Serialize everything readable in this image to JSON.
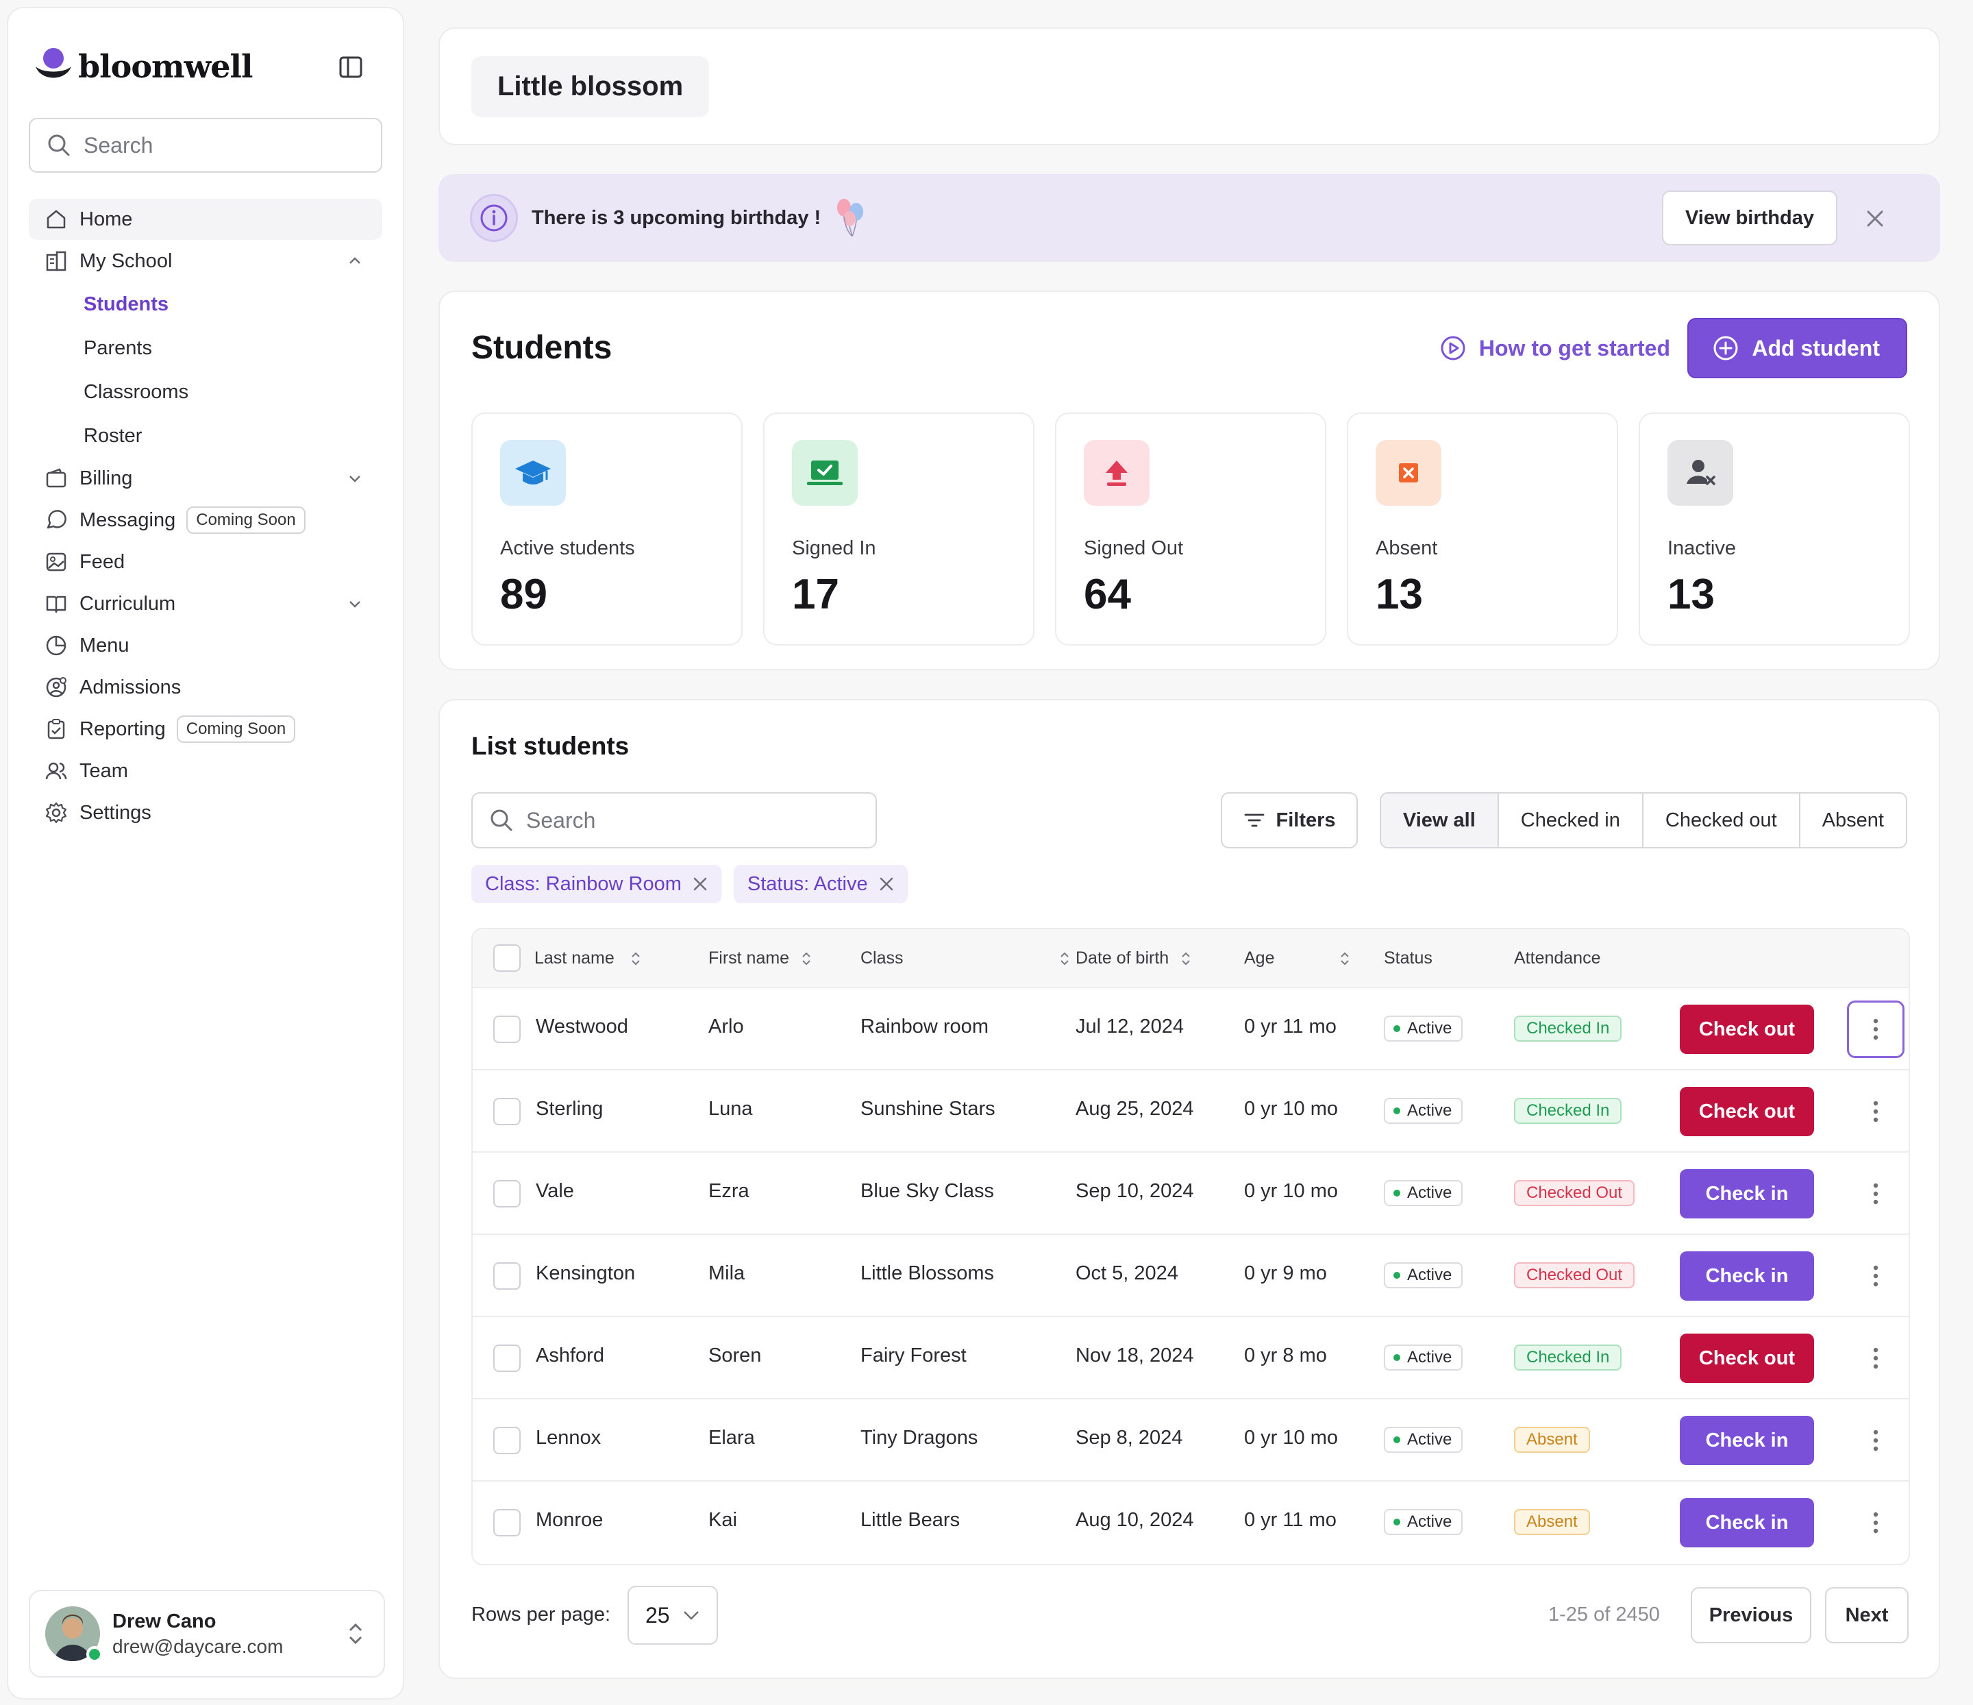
{
  "brand": {
    "name": "bloomwell"
  },
  "sidebar": {
    "search_placeholder": "Search",
    "items": [
      {
        "label": "Home",
        "icon": "home-icon"
      },
      {
        "label": "My School",
        "icon": "building-icon"
      },
      {
        "label": "Billing",
        "icon": "wallet-icon"
      },
      {
        "label": "Messaging",
        "icon": "chat-icon",
        "badge": "Coming Soon"
      },
      {
        "label": "Feed",
        "icon": "image-icon"
      },
      {
        "label": "Curriculum",
        "icon": "book-icon"
      },
      {
        "label": "Menu",
        "icon": "pie-icon"
      },
      {
        "label": "Admissions",
        "icon": "user-gear-icon"
      },
      {
        "label": "Reporting",
        "icon": "clipboard-icon",
        "badge": "Coming Soon"
      },
      {
        "label": "Team",
        "icon": "users-icon"
      },
      {
        "label": "Settings",
        "icon": "gear-icon"
      }
    ],
    "school_sub": [
      "Students",
      "Parents",
      "Classrooms",
      "Roster"
    ]
  },
  "user": {
    "name": "Drew Cano",
    "email": "drew@daycare.com"
  },
  "header": {
    "school_name": "Little blossom"
  },
  "banner": {
    "text": "There is 3 upcoming birthday !",
    "button": "View birthday"
  },
  "students": {
    "title": "Students",
    "how_link": "How to get started",
    "add_button": "Add student",
    "stats": [
      {
        "label": "Active students",
        "value": "89",
        "bg": "#d6ecfb",
        "color": "#1e7fd6"
      },
      {
        "label": "Signed In",
        "value": "17",
        "bg": "#d8f3e1",
        "color": "#1d9a4f"
      },
      {
        "label": "Signed Out",
        "value": "64",
        "bg": "#fde0e4",
        "color": "#e23b55"
      },
      {
        "label": "Absent",
        "value": "13",
        "bg": "#fde3d3",
        "color": "#f1652d"
      },
      {
        "label": "Inactive",
        "value": "13",
        "bg": "#e5e5e8",
        "color": "#4a4a52"
      }
    ]
  },
  "list": {
    "title": "List students",
    "search_placeholder": "Search",
    "filters_label": "Filters",
    "tabs": [
      "View all",
      "Checked in",
      "Checked out",
      "Absent"
    ],
    "chips": [
      "Class: Rainbow Room",
      "Status: Active"
    ],
    "columns": [
      "Last name",
      "First name",
      "Class",
      "Date of birth",
      "Age",
      "Status",
      "Attendance"
    ],
    "rows": [
      {
        "last": "Westwood",
        "first": "Arlo",
        "class": "Rainbow room",
        "dob": "Jul 12, 2024",
        "age": "0 yr 11 mo",
        "status": "Active",
        "attendance": "Checked In",
        "action": "Check out"
      },
      {
        "last": "Sterling",
        "first": "Luna",
        "class": "Sunshine Stars",
        "dob": "Aug 25, 2024",
        "age": "0 yr 10 mo",
        "status": "Active",
        "attendance": "Checked In",
        "action": "Check out"
      },
      {
        "last": "Vale",
        "first": "Ezra",
        "class": "Blue Sky Class",
        "dob": "Sep 10, 2024",
        "age": "0 yr 10 mo",
        "status": "Active",
        "attendance": "Checked Out",
        "action": "Check in"
      },
      {
        "last": "Kensington",
        "first": "Mila",
        "class": "Little Blossoms",
        "dob": "Oct 5, 2024",
        "age": "0 yr 9 mo",
        "status": "Active",
        "attendance": "Checked Out",
        "action": "Check in"
      },
      {
        "last": "Ashford",
        "first": "Soren",
        "class": "Fairy Forest",
        "dob": "Nov 18, 2024",
        "age": "0 yr 8 mo",
        "status": "Active",
        "attendance": "Checked In",
        "action": "Check out"
      },
      {
        "last": "Lennox",
        "first": "Elara",
        "class": "Tiny Dragons",
        "dob": "Sep 8, 2024",
        "age": "0 yr 10 mo",
        "status": "Active",
        "attendance": "Absent",
        "action": "Check in"
      },
      {
        "last": "Monroe",
        "first": "Kai",
        "class": "Little Bears",
        "dob": "Aug 10, 2024",
        "age": "0 yr 11 mo",
        "status": "Active",
        "attendance": "Absent",
        "action": "Check in"
      }
    ],
    "rows_per_page_label": "Rows per page:",
    "rows_per_page": "25",
    "page_count": "1-25 of 2450",
    "prev_label": "Previous",
    "next_label": "Next"
  },
  "colors": {
    "accent": "#7b50d8",
    "danger": "#c3113f"
  }
}
